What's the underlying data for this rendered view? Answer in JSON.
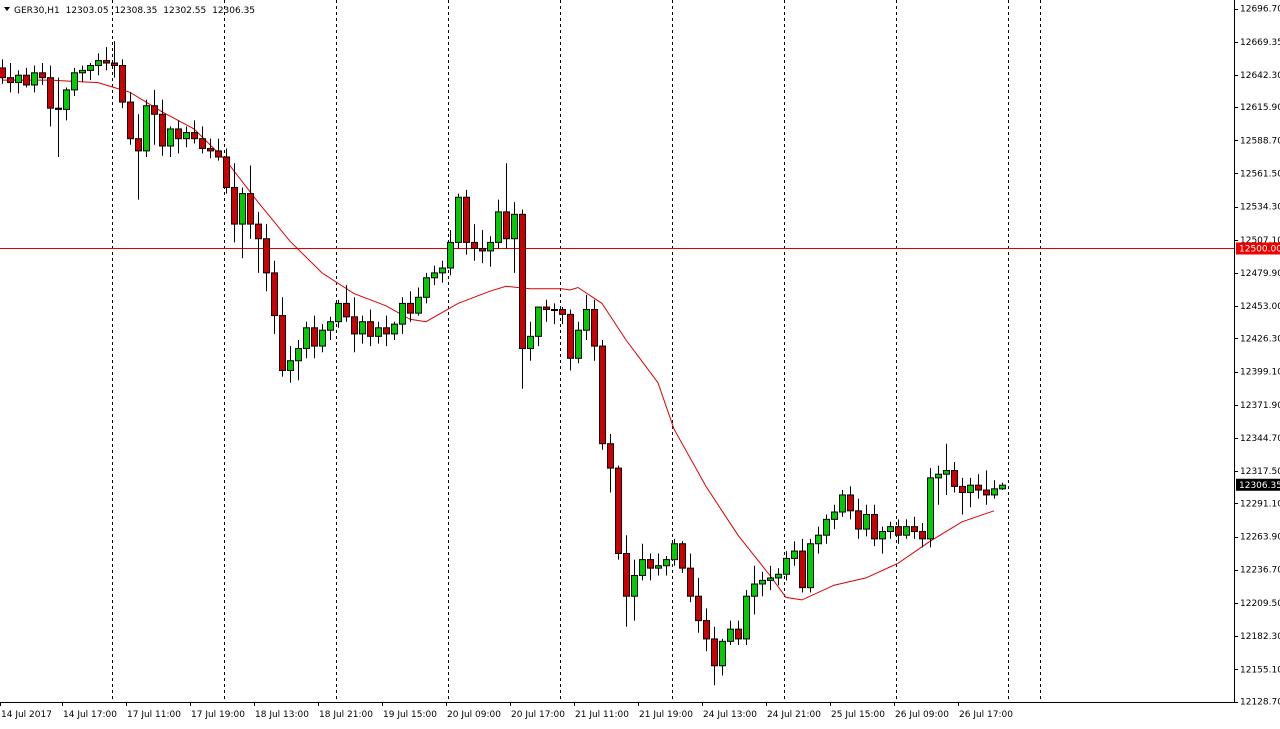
{
  "header": {
    "symbol": "GER30,H1",
    "open": "12303.05",
    "high": "12308.35",
    "low": "12302.55",
    "close": "12306.35"
  },
  "colors": {
    "bull": "#00cc00",
    "bear": "#cc0000",
    "wick": "#000000",
    "ma": "#dd0000",
    "hline": "#dd0000",
    "price_tag_bg": "#000000",
    "level_tag_bg": "#ee0000"
  },
  "chart_data": {
    "type": "candlestick",
    "timeframe": "H1",
    "ylim": [
      12120,
      12705
    ],
    "y_ticks": [
      "12696.70",
      "12669.35",
      "12642.30",
      "12615.90",
      "12588.70",
      "12561.50",
      "12534.30",
      "12507.10",
      "12479.90",
      "12453.00",
      "12426.30",
      "12399.10",
      "12371.90",
      "12344.70",
      "12317.50",
      "12291.10",
      "12263.90",
      "12236.70",
      "12209.50",
      "12182.30",
      "12155.10",
      "12128.70"
    ],
    "x_labels": [
      "14 Jul 2017",
      "14 Jul 17:00",
      "17 Jul 11:00",
      "17 Jul 19:00",
      "18 Jul 13:00",
      "18 Jul 21:00",
      "19 Jul 15:00",
      "20 Jul 09:00",
      "20 Jul 17:00",
      "21 Jul 11:00",
      "21 Jul 19:00",
      "24 Jul 13:00",
      "24 Jul 21:00",
      "25 Jul 15:00",
      "26 Jul 09:00",
      "26 Jul 17:00"
    ],
    "separator_indices": [
      14,
      28,
      42,
      56,
      70,
      84,
      98,
      112,
      126
    ],
    "horizontal_level": {
      "value": 12500,
      "label": "12500.00"
    },
    "current_price": {
      "value": 12306.35,
      "label": "12306.35"
    },
    "moving_average_points": [
      [
        0,
        12638
      ],
      [
        6,
        12638
      ],
      [
        12,
        12636
      ],
      [
        16,
        12628
      ],
      [
        20,
        12612
      ],
      [
        24,
        12598
      ],
      [
        28,
        12572
      ],
      [
        32,
        12538
      ],
      [
        36,
        12506
      ],
      [
        40,
        12480
      ],
      [
        44,
        12463
      ],
      [
        48,
        12453
      ],
      [
        51,
        12442
      ],
      [
        53,
        12440
      ],
      [
        57,
        12455
      ],
      [
        61,
        12465
      ],
      [
        63,
        12469
      ],
      [
        66,
        12467
      ],
      [
        70,
        12467
      ],
      [
        71,
        12466
      ],
      [
        72,
        12468
      ],
      [
        75,
        12455
      ],
      [
        78,
        12425
      ],
      [
        82,
        12390
      ],
      [
        84,
        12352
      ],
      [
        88,
        12305
      ],
      [
        92,
        12265
      ],
      [
        96,
        12232
      ],
      [
        98,
        12214
      ],
      [
        100,
        12212
      ],
      [
        104,
        12224
      ],
      [
        108,
        12230
      ],
      [
        112,
        12242
      ],
      [
        116,
        12260
      ],
      [
        120,
        12276
      ],
      [
        124,
        12285
      ]
    ],
    "candles": [
      [
        12648,
        12655,
        12635,
        12640
      ],
      [
        12640,
        12652,
        12628,
        12636
      ],
      [
        12636,
        12646,
        12627,
        12642
      ],
      [
        12642,
        12648,
        12632,
        12634
      ],
      [
        12634,
        12650,
        12628,
        12644
      ],
      [
        12644,
        12652,
        12634,
        12640
      ],
      [
        12640,
        12650,
        12600,
        12615
      ],
      [
        12615,
        12640,
        12575,
        12614
      ],
      [
        12614,
        12632,
        12605,
        12630
      ],
      [
        12630,
        12648,
        12625,
        12644
      ],
      [
        12644,
        12650,
        12636,
        12646
      ],
      [
        12646,
        12652,
        12638,
        12650
      ],
      [
        12650,
        12660,
        12642,
        12654
      ],
      [
        12654,
        12665,
        12646,
        12652
      ],
      [
        12652,
        12670,
        12640,
        12650
      ],
      [
        12650,
        12655,
        12615,
        12620
      ],
      [
        12620,
        12628,
        12585,
        12590
      ],
      [
        12590,
        12610,
        12540,
        12580
      ],
      [
        12580,
        12622,
        12575,
        12617
      ],
      [
        12617,
        12630,
        12585,
        12610
      ],
      [
        12610,
        12622,
        12576,
        12584
      ],
      [
        12584,
        12600,
        12575,
        12598
      ],
      [
        12598,
        12605,
        12578,
        12590
      ],
      [
        12590,
        12600,
        12583,
        12595
      ],
      [
        12595,
        12605,
        12586,
        12590
      ],
      [
        12590,
        12600,
        12578,
        12582
      ],
      [
        12582,
        12590,
        12574,
        12580
      ],
      [
        12580,
        12590,
        12572,
        12575
      ],
      [
        12575,
        12582,
        12545,
        12550
      ],
      [
        12550,
        12570,
        12505,
        12520
      ],
      [
        12520,
        12550,
        12492,
        12545
      ],
      [
        12545,
        12568,
        12508,
        12520
      ],
      [
        12520,
        12530,
        12480,
        12508
      ],
      [
        12508,
        12520,
        12465,
        12480
      ],
      [
        12480,
        12490,
        12430,
        12445
      ],
      [
        12445,
        12460,
        12395,
        12400
      ],
      [
        12400,
        12420,
        12390,
        12408
      ],
      [
        12408,
        12425,
        12392,
        12418
      ],
      [
        12418,
        12440,
        12410,
        12435
      ],
      [
        12435,
        12445,
        12410,
        12420
      ],
      [
        12420,
        12438,
        12415,
        12433
      ],
      [
        12433,
        12444,
        12425,
        12440
      ],
      [
        12440,
        12458,
        12435,
        12455
      ],
      [
        12455,
        12470,
        12440,
        12444
      ],
      [
        12444,
        12460,
        12415,
        12430
      ],
      [
        12430,
        12445,
        12422,
        12440
      ],
      [
        12440,
        12450,
        12420,
        12428
      ],
      [
        12428,
        12440,
        12422,
        12435
      ],
      [
        12435,
        12445,
        12420,
        12430
      ],
      [
        12430,
        12440,
        12425,
        12438
      ],
      [
        12438,
        12460,
        12430,
        12455
      ],
      [
        12455,
        12465,
        12440,
        12447
      ],
      [
        12447,
        12468,
        12445,
        12460
      ],
      [
        12460,
        12480,
        12455,
        12476
      ],
      [
        12476,
        12486,
        12470,
        12480
      ],
      [
        12480,
        12490,
        12472,
        12484
      ],
      [
        12484,
        12515,
        12478,
        12505
      ],
      [
        12505,
        12545,
        12500,
        12542
      ],
      [
        12542,
        12548,
        12495,
        12505
      ],
      [
        12505,
        12520,
        12490,
        12500
      ],
      [
        12500,
        12515,
        12488,
        12498
      ],
      [
        12498,
        12510,
        12485,
        12505
      ],
      [
        12505,
        12540,
        12500,
        12530
      ],
      [
        12530,
        12570,
        12500,
        12508
      ],
      [
        12508,
        12538,
        12480,
        12528
      ],
      [
        12528,
        12532,
        12385,
        12418
      ],
      [
        12418,
        12440,
        12408,
        12428
      ],
      [
        12428,
        12450,
        12420,
        12452
      ],
      [
        12452,
        12458,
        12440,
        12450
      ],
      [
        12450,
        12455,
        12438,
        12450
      ],
      [
        12450,
        12452,
        12438,
        12446
      ],
      [
        12446,
        12450,
        12400,
        12410
      ],
      [
        12410,
        12440,
        12406,
        12433
      ],
      [
        12433,
        12462,
        12425,
        12450
      ],
      [
        12450,
        12458,
        12408,
        12420
      ],
      [
        12420,
        12425,
        12335,
        12340
      ],
      [
        12340,
        12348,
        12300,
        12320
      ],
      [
        12320,
        12322,
        12245,
        12250
      ],
      [
        12250,
        12265,
        12190,
        12215
      ],
      [
        12215,
        12245,
        12195,
        12232
      ],
      [
        12232,
        12258,
        12228,
        12245
      ],
      [
        12245,
        12250,
        12228,
        12238
      ],
      [
        12238,
        12250,
        12232,
        12240
      ],
      [
        12240,
        12248,
        12232,
        12245
      ],
      [
        12245,
        12262,
        12240,
        12258
      ],
      [
        12258,
        12260,
        12234,
        12238
      ],
      [
        12238,
        12250,
        12210,
        12215
      ],
      [
        12215,
        12230,
        12185,
        12195
      ],
      [
        12195,
        12205,
        12170,
        12180
      ],
      [
        12180,
        12190,
        12142,
        12158
      ],
      [
        12158,
        12180,
        12150,
        12178
      ],
      [
        12178,
        12195,
        12175,
        12188
      ],
      [
        12188,
        12195,
        12175,
        12180
      ],
      [
        12180,
        12220,
        12175,
        12215
      ],
      [
        12215,
        12240,
        12200,
        12225
      ],
      [
        12225,
        12235,
        12215,
        12228
      ],
      [
        12228,
        12240,
        12220,
        12230
      ],
      [
        12230,
        12238,
        12224,
        12233
      ],
      [
        12233,
        12252,
        12228,
        12246
      ],
      [
        12246,
        12260,
        12240,
        12252
      ],
      [
        12252,
        12262,
        12218,
        12222
      ],
      [
        12222,
        12262,
        12218,
        12258
      ],
      [
        12258,
        12272,
        12250,
        12265
      ],
      [
        12265,
        12282,
        12258,
        12278
      ],
      [
        12278,
        12290,
        12270,
        12284
      ],
      [
        12284,
        12302,
        12280,
        12298
      ],
      [
        12298,
        12305,
        12278,
        12285
      ],
      [
        12285,
        12295,
        12262,
        12270
      ],
      [
        12270,
        12290,
        12264,
        12282
      ],
      [
        12282,
        12290,
        12256,
        12262
      ],
      [
        12262,
        12272,
        12250,
        12268
      ],
      [
        12268,
        12276,
        12262,
        12272
      ],
      [
        12272,
        12278,
        12258,
        12265
      ],
      [
        12265,
        12278,
        12262,
        12272
      ],
      [
        12272,
        12280,
        12262,
        12268
      ],
      [
        12268,
        12275,
        12255,
        12262
      ],
      [
        12262,
        12320,
        12255,
        12312
      ],
      [
        12312,
        12322,
        12290,
        12315
      ],
      [
        12315,
        12340,
        12298,
        12318
      ],
      [
        12318,
        12325,
        12300,
        12305
      ],
      [
        12305,
        12312,
        12282,
        12300
      ],
      [
        12300,
        12312,
        12288,
        12306
      ],
      [
        12306,
        12315,
        12295,
        12302
      ],
      [
        12302,
        12318,
        12290,
        12298
      ],
      [
        12298,
        12310,
        12295,
        12303
      ],
      [
        12303,
        12308,
        12302,
        12306
      ]
    ]
  }
}
